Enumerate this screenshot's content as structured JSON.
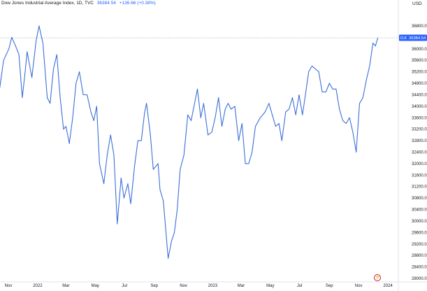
{
  "header": {
    "symbol_title": "Dow Jones Industrial Average Index, 1D, TVC",
    "last": "36384.54",
    "change": "+136.66 (+0.38%)"
  },
  "currency": "USD",
  "price_tag": {
    "ticker": "DJI",
    "value": "36384.54",
    "color": "#2962ff"
  },
  "flash_icon": "lightning-icon",
  "chart_data": {
    "type": "line",
    "title": "Dow Jones Industrial Average Index, 1D, TVC",
    "xlabel": "",
    "ylabel": "",
    "line_color": "#3b6fd8",
    "grid": false,
    "ylim": [
      28000,
      36800
    ],
    "y_ticks": [
      36800,
      36400,
      36000,
      35600,
      35200,
      34800,
      34400,
      34000,
      33600,
      33200,
      32800,
      32400,
      32000,
      31600,
      31200,
      30800,
      30400,
      30000,
      29600,
      29200,
      28800,
      28400,
      28000
    ],
    "x_ticks": [
      {
        "label": "Nov",
        "date": "2021-11-01"
      },
      {
        "label": "2022",
        "date": "2022-01-01"
      },
      {
        "label": "Mar",
        "date": "2022-03-01"
      },
      {
        "label": "May",
        "date": "2022-05-01"
      },
      {
        "label": "Jul",
        "date": "2022-07-01"
      },
      {
        "label": "Sep",
        "date": "2022-09-01"
      },
      {
        "label": "Nov",
        "date": "2022-11-01"
      },
      {
        "label": "2023",
        "date": "2023-01-01"
      },
      {
        "label": "Mar",
        "date": "2023-03-01"
      },
      {
        "label": "May",
        "date": "2023-05-01"
      },
      {
        "label": "Jul",
        "date": "2023-07-01"
      },
      {
        "label": "Sep",
        "date": "2023-09-01"
      },
      {
        "label": "Nov",
        "date": "2023-11-01"
      },
      {
        "label": "2024",
        "date": "2024-01-01"
      }
    ],
    "series": [
      {
        "points": [
          [
            "2021-10-01",
            34300
          ],
          [
            "2021-10-12",
            34400
          ],
          [
            "2021-10-22",
            35600
          ],
          [
            "2021-11-02",
            36000
          ],
          [
            "2021-11-08",
            36400
          ],
          [
            "2021-11-16",
            36100
          ],
          [
            "2021-11-23",
            35800
          ],
          [
            "2021-11-30",
            34300
          ],
          [
            "2021-12-06",
            35200
          ],
          [
            "2021-12-10",
            35900
          ],
          [
            "2021-12-20",
            35000
          ],
          [
            "2021-12-29",
            36300
          ],
          [
            "2022-01-04",
            36800
          ],
          [
            "2022-01-12",
            36200
          ],
          [
            "2022-01-21",
            34300
          ],
          [
            "2022-01-27",
            34100
          ],
          [
            "2022-02-03",
            35300
          ],
          [
            "2022-02-10",
            35800
          ],
          [
            "2022-02-17",
            34300
          ],
          [
            "2022-02-24",
            33200
          ],
          [
            "2022-03-01",
            33300
          ],
          [
            "2022-03-08",
            32700
          ],
          [
            "2022-03-15",
            33600
          ],
          [
            "2022-03-22",
            34800
          ],
          [
            "2022-03-29",
            35200
          ],
          [
            "2022-04-06",
            34400
          ],
          [
            "2022-04-14",
            34400
          ],
          [
            "2022-04-22",
            33800
          ],
          [
            "2022-04-28",
            33500
          ],
          [
            "2022-05-04",
            34000
          ],
          [
            "2022-05-10",
            32000
          ],
          [
            "2022-05-19",
            31300
          ],
          [
            "2022-05-26",
            32300
          ],
          [
            "2022-06-02",
            33000
          ],
          [
            "2022-06-09",
            32300
          ],
          [
            "2022-06-16",
            29900
          ],
          [
            "2022-06-24",
            31500
          ],
          [
            "2022-06-30",
            30800
          ],
          [
            "2022-07-08",
            31300
          ],
          [
            "2022-07-14",
            30600
          ],
          [
            "2022-07-22",
            31900
          ],
          [
            "2022-07-29",
            32800
          ],
          [
            "2022-08-05",
            32800
          ],
          [
            "2022-08-12",
            33800
          ],
          [
            "2022-08-16",
            34100
          ],
          [
            "2022-08-24",
            33000
          ],
          [
            "2022-08-30",
            31800
          ],
          [
            "2022-09-09",
            32000
          ],
          [
            "2022-09-13",
            31100
          ],
          [
            "2022-09-20",
            30700
          ],
          [
            "2022-09-30",
            28700
          ],
          [
            "2022-10-07",
            29300
          ],
          [
            "2022-10-13",
            29600
          ],
          [
            "2022-10-19",
            30400
          ],
          [
            "2022-10-25",
            31800
          ],
          [
            "2022-11-02",
            32300
          ],
          [
            "2022-11-10",
            33700
          ],
          [
            "2022-11-17",
            33500
          ],
          [
            "2022-11-30",
            34600
          ],
          [
            "2022-12-07",
            33600
          ],
          [
            "2022-12-13",
            34100
          ],
          [
            "2022-12-22",
            33000
          ],
          [
            "2022-12-30",
            33100
          ],
          [
            "2023-01-06",
            33600
          ],
          [
            "2023-01-13",
            34300
          ],
          [
            "2023-01-20",
            33300
          ],
          [
            "2023-01-27",
            33900
          ],
          [
            "2023-02-02",
            34100
          ],
          [
            "2023-02-08",
            33900
          ],
          [
            "2023-02-16",
            34000
          ],
          [
            "2023-02-24",
            32800
          ],
          [
            "2023-03-03",
            33400
          ],
          [
            "2023-03-10",
            32000
          ],
          [
            "2023-03-17",
            32000
          ],
          [
            "2023-03-24",
            32400
          ],
          [
            "2023-03-31",
            33300
          ],
          [
            "2023-04-10",
            33600
          ],
          [
            "2023-04-20",
            33800
          ],
          [
            "2023-04-28",
            34100
          ],
          [
            "2023-05-05",
            33700
          ],
          [
            "2023-05-12",
            33300
          ],
          [
            "2023-05-19",
            33400
          ],
          [
            "2023-05-25",
            32800
          ],
          [
            "2023-06-02",
            33800
          ],
          [
            "2023-06-09",
            33900
          ],
          [
            "2023-06-16",
            34300
          ],
          [
            "2023-06-23",
            33700
          ],
          [
            "2023-06-30",
            34400
          ],
          [
            "2023-07-07",
            33700
          ],
          [
            "2023-07-14",
            34500
          ],
          [
            "2023-07-20",
            35200
          ],
          [
            "2023-07-27",
            35400
          ],
          [
            "2023-08-03",
            35300
          ],
          [
            "2023-08-10",
            35200
          ],
          [
            "2023-08-17",
            34500
          ],
          [
            "2023-08-25",
            34500
          ],
          [
            "2023-09-01",
            34800
          ],
          [
            "2023-09-08",
            34600
          ],
          [
            "2023-09-15",
            34600
          ],
          [
            "2023-09-22",
            33900
          ],
          [
            "2023-09-29",
            33500
          ],
          [
            "2023-10-06",
            33400
          ],
          [
            "2023-10-13",
            33600
          ],
          [
            "2023-10-20",
            33100
          ],
          [
            "2023-10-27",
            32400
          ],
          [
            "2023-11-03",
            34100
          ],
          [
            "2023-11-10",
            34300
          ],
          [
            "2023-11-17",
            34900
          ],
          [
            "2023-11-24",
            35400
          ],
          [
            "2023-12-01",
            36200
          ],
          [
            "2023-12-06",
            36100
          ],
          [
            "2023-12-11",
            36384.54
          ]
        ]
      }
    ]
  }
}
